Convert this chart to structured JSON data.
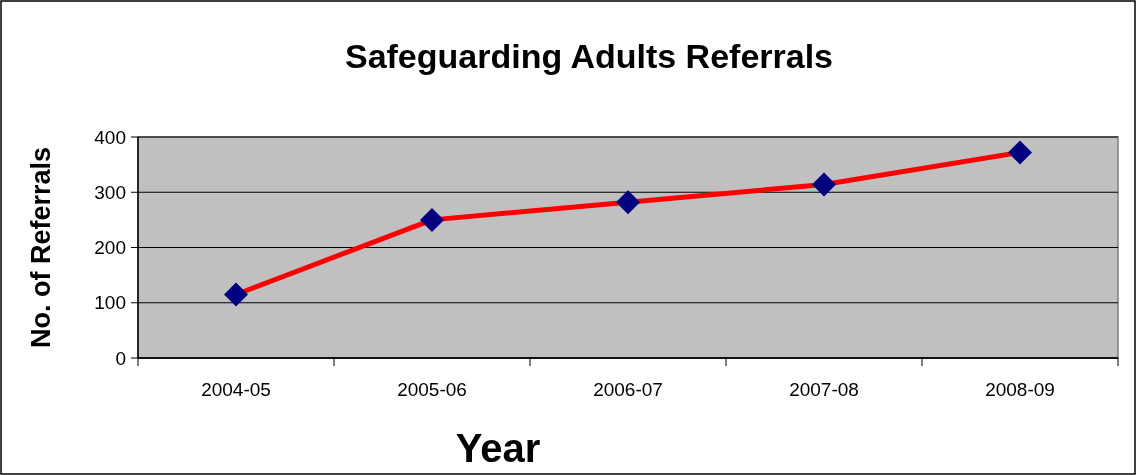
{
  "chart_data": {
    "type": "line",
    "title": "Safeguarding Adults Referrals",
    "xlabel": "Year",
    "ylabel": "No. of Referrals",
    "categories": [
      "2004-05",
      "2005-06",
      "2006-07",
      "2007-08",
      "2008-09"
    ],
    "series": [
      {
        "color": "#ff0000",
        "colors": [
          "#000080",
          "#000080",
          "#000080",
          "#000080",
          "#000080"
        ],
        "values": [
          115,
          250,
          282,
          314,
          372
        ]
      }
    ],
    "ylim": [
      0,
      400
    ],
    "yticks": [
      0,
      100,
      200,
      300,
      400
    ],
    "grid": "y",
    "marker": "diamond",
    "line_style": "solid"
  }
}
